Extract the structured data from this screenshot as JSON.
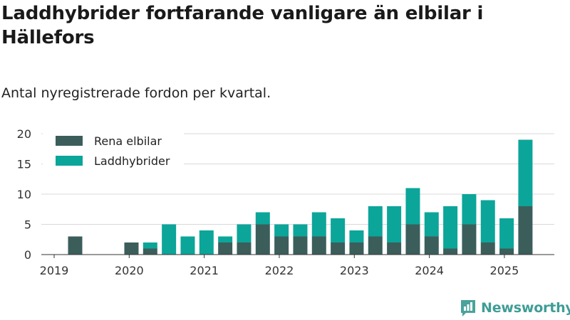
{
  "title": "Laddhybrider fortfarande vanligare än elbilar i Hällefors",
  "subtitle": "Antal nyregistrerade fordon per kvartal.",
  "brand": {
    "name": "Newsworthy",
    "color": "#4aa39c"
  },
  "colors": {
    "rena": "#3b5e5b",
    "ladd": "#0ca59a",
    "grid": "#d9d9d9",
    "axis": "#333333"
  },
  "chart_data": {
    "type": "bar",
    "stacked": true,
    "title": "Laddhybrider fortfarande vanligare än elbilar i Hällefors",
    "subtitle": "Antal nyregistrerade fordon per kvartal.",
    "xlabel": "",
    "ylabel": "",
    "ylim": [
      0,
      20
    ],
    "yticks": [
      0,
      5,
      10,
      15,
      20
    ],
    "xticks": [
      "2019",
      "2020",
      "2021",
      "2022",
      "2023",
      "2024",
      "2025"
    ],
    "grid": true,
    "legend": "top-left",
    "categories": [
      "2019 Q1",
      "2019 Q2",
      "2019 Q3",
      "2019 Q4",
      "2020 Q1",
      "2020 Q2",
      "2020 Q3",
      "2020 Q4",
      "2021 Q1",
      "2021 Q2",
      "2021 Q3",
      "2021 Q4",
      "2022 Q1",
      "2022 Q2",
      "2022 Q3",
      "2022 Q4",
      "2023 Q1",
      "2023 Q2",
      "2023 Q3",
      "2023 Q4",
      "2024 Q1",
      "2024 Q2",
      "2024 Q3",
      "2024 Q4",
      "2025 Q1",
      "2025 Q2"
    ],
    "series": [
      {
        "name": "Rena elbilar",
        "color": "#3b5e5b",
        "values": [
          0,
          3,
          0,
          0,
          2,
          1,
          0,
          0,
          0,
          2,
          2,
          5,
          3,
          3,
          3,
          2,
          2,
          3,
          2,
          5,
          3,
          1,
          5,
          2,
          1,
          8
        ]
      },
      {
        "name": "Laddhybrider",
        "color": "#0ca59a",
        "values": [
          0,
          0,
          0,
          0,
          0,
          1,
          5,
          3,
          4,
          1,
          3,
          2,
          2,
          2,
          4,
          4,
          2,
          5,
          6,
          6,
          4,
          7,
          5,
          7,
          5,
          11
        ]
      }
    ]
  }
}
